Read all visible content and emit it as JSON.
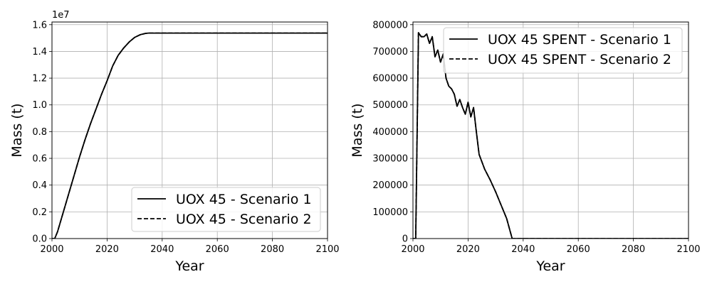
{
  "chart_data": [
    {
      "type": "line",
      "xlabel": "Year",
      "ylabel": "Mass (t)",
      "xlim": [
        2000,
        2100
      ],
      "ylim": [
        0,
        1.62
      ],
      "y_offset_text": "1e7",
      "grid": true,
      "legend_placement": "lower-right",
      "xticks": [
        "2000",
        "2020",
        "2040",
        "2060",
        "2080",
        "2100"
      ],
      "yticks": [
        "0.0",
        "0.2",
        "0.4",
        "0.6",
        "0.8",
        "1.0",
        "1.2",
        "1.4",
        "1.6"
      ],
      "series": [
        {
          "name": "UOX 45 - Scenario 1",
          "style": "solid",
          "x": [
            2000,
            2001,
            2002,
            2004,
            2006,
            2008,
            2010,
            2012,
            2014,
            2016,
            2018,
            2020,
            2022,
            2024,
            2026,
            2028,
            2030,
            2032,
            2034,
            2035,
            2036,
            2040,
            2050,
            2060,
            2070,
            2080,
            2090,
            2100
          ],
          "y": [
            0,
            0,
            0.05,
            0.19,
            0.33,
            0.47,
            0.61,
            0.74,
            0.86,
            0.97,
            1.08,
            1.18,
            1.29,
            1.37,
            1.425,
            1.47,
            1.505,
            1.525,
            1.535,
            1.537,
            1.537,
            1.537,
            1.537,
            1.537,
            1.537,
            1.537,
            1.537,
            1.537
          ]
        },
        {
          "name": "UOX 45 - Scenario 2",
          "style": "dashed",
          "x": [
            2000,
            2001,
            2002,
            2004,
            2006,
            2008,
            2010,
            2012,
            2014,
            2016,
            2018,
            2020,
            2022,
            2024,
            2026,
            2028,
            2030,
            2032,
            2034,
            2035,
            2036,
            2040,
            2050,
            2060,
            2070,
            2080,
            2090,
            2100
          ],
          "y": [
            0,
            0,
            0.05,
            0.19,
            0.33,
            0.47,
            0.61,
            0.74,
            0.86,
            0.97,
            1.08,
            1.18,
            1.29,
            1.37,
            1.425,
            1.47,
            1.505,
            1.525,
            1.535,
            1.537,
            1.537,
            1.537,
            1.537,
            1.537,
            1.537,
            1.537,
            1.537,
            1.537
          ]
        }
      ]
    },
    {
      "type": "line",
      "xlabel": "Year",
      "ylabel": "Mass (t)",
      "xlim": [
        2000,
        2100
      ],
      "ylim": [
        0,
        810000
      ],
      "grid": true,
      "legend_placement": "upper-right",
      "xticks": [
        "2000",
        "2020",
        "2040",
        "2060",
        "2080",
        "2100"
      ],
      "yticks": [
        "0",
        "100000",
        "200000",
        "300000",
        "400000",
        "500000",
        "600000",
        "700000",
        "800000"
      ],
      "series": [
        {
          "name": "UOX 45 SPENT - Scenario 1",
          "style": "solid",
          "x": [
            2000,
            2001,
            2002,
            2003,
            2004,
            2005,
            2006,
            2007,
            2008,
            2009,
            2010,
            2011,
            2012,
            2013,
            2014,
            2015,
            2016,
            2017,
            2018,
            2019,
            2020,
            2021,
            2022,
            2023,
            2024,
            2026,
            2028,
            2030,
            2032,
            2034,
            2036,
            2040,
            2060,
            2080,
            2100
          ],
          "y": [
            0,
            0,
            770000,
            755000,
            755000,
            765000,
            730000,
            755000,
            680000,
            705000,
            660000,
            690000,
            600000,
            570000,
            560000,
            540000,
            495000,
            520000,
            490000,
            465000,
            510000,
            455000,
            490000,
            400000,
            315000,
            260000,
            220000,
            175000,
            125000,
            75000,
            0,
            0,
            0,
            0,
            0
          ]
        },
        {
          "name": "UOX 45 SPENT - Scenario 2",
          "style": "dashed",
          "x": [
            2000,
            2001,
            2002,
            2003,
            2004,
            2005,
            2006,
            2007,
            2008,
            2009,
            2010,
            2011,
            2012,
            2013,
            2014,
            2015,
            2016,
            2017,
            2018,
            2019,
            2020,
            2021,
            2022,
            2023,
            2024,
            2026,
            2028,
            2030,
            2032,
            2034,
            2036,
            2040,
            2060,
            2080,
            2100
          ],
          "y": [
            0,
            0,
            770000,
            755000,
            755000,
            765000,
            730000,
            755000,
            680000,
            705000,
            660000,
            690000,
            600000,
            570000,
            560000,
            540000,
            495000,
            520000,
            490000,
            465000,
            510000,
            455000,
            490000,
            400000,
            315000,
            260000,
            220000,
            175000,
            125000,
            75000,
            0,
            0,
            0,
            0,
            0
          ]
        }
      ]
    }
  ]
}
